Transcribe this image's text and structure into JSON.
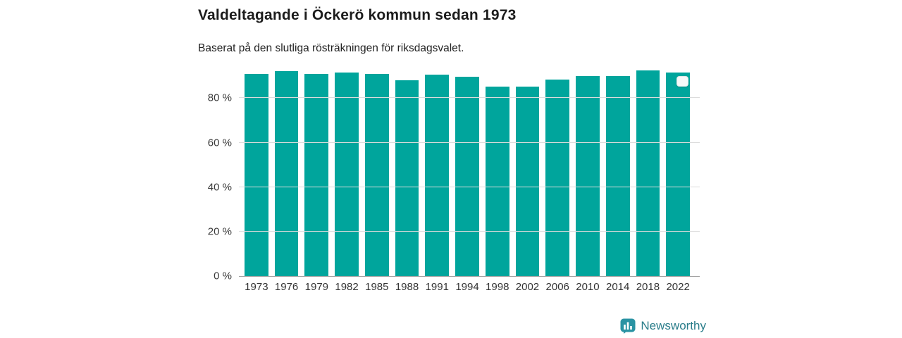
{
  "header": {
    "title": "Valdeltagande i Öckerö kommun sedan 1973",
    "subtitle": "Baserat på den slutliga rösträkningen för riksdagsvalet."
  },
  "chart_data": {
    "type": "bar",
    "title": "Valdeltagande i Öckerö kommun sedan 1973",
    "subtitle": "Baserat på den slutliga rösträkningen för riksdagsvalet.",
    "categories": [
      "1973",
      "1976",
      "1979",
      "1982",
      "1985",
      "1988",
      "1991",
      "1994",
      "1998",
      "2002",
      "2006",
      "2010",
      "2014",
      "2018",
      "2022"
    ],
    "values": [
      91.0,
      92.2,
      90.9,
      91.4,
      90.9,
      88.0,
      90.5,
      89.5,
      85.3,
      85.3,
      88.2,
      89.8,
      90.0,
      92.4,
      91.5
    ],
    "unit": "%",
    "xlabel": "",
    "ylabel": "",
    "ylim": [
      0,
      95
    ],
    "yticks": [
      0,
      20,
      40,
      60,
      80
    ],
    "ytick_labels": [
      "0 %",
      "20 %",
      "40 %",
      "60 %",
      "80 %"
    ],
    "grid": true,
    "bar_color": "#00a59c",
    "marker_bar_index": 14
  },
  "footer": {
    "brand": "Newsworthy",
    "brand_text_color": "#2a7d8a",
    "logo_color": "#2a93a3"
  }
}
